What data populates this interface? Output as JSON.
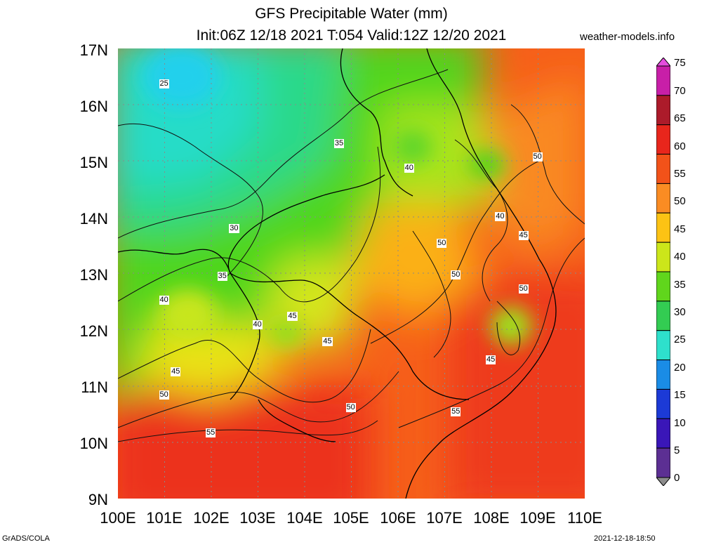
{
  "title": {
    "line1": "GFS Precipitable Water (mm)",
    "line2": "Init:06Z 12/18 2021 T:054 Valid:12Z 12/20 2021"
  },
  "site": "weather-models.info",
  "axes": {
    "lat_labels": [
      "17N",
      "16N",
      "15N",
      "14N",
      "13N",
      "12N",
      "11N",
      "10N",
      "9N"
    ],
    "lon_labels": [
      "100E",
      "101E",
      "102E",
      "103E",
      "104E",
      "105E",
      "106E",
      "107E",
      "108E",
      "109E",
      "110E"
    ],
    "lat_range": [
      9,
      17
    ],
    "lon_range": [
      100,
      110
    ]
  },
  "colorbar": {
    "labels": [
      "75",
      "70",
      "65",
      "60",
      "55",
      "50",
      "45",
      "40",
      "35",
      "30",
      "25",
      "20",
      "15",
      "10",
      "5",
      "0"
    ],
    "colors": [
      "#e54dde",
      "#c81fa8",
      "#ac1b2a",
      "#e8261c",
      "#f25219",
      "#fa8c23",
      "#fcc314",
      "#cce61a",
      "#60d61c",
      "#33cc52",
      "#2ee0cc",
      "#1a8ce6",
      "#1c3ad6",
      "#3a16b8",
      "#5c2f93",
      "#8c8c8c"
    ]
  },
  "contour_labels": [
    {
      "text": "25",
      "lon": 101.0,
      "lat": 16.36
    },
    {
      "text": "35",
      "lon": 104.75,
      "lat": 15.3
    },
    {
      "text": "40",
      "lon": 106.25,
      "lat": 14.87
    },
    {
      "text": "50",
      "lon": 109.0,
      "lat": 15.06
    },
    {
      "text": "30",
      "lon": 102.5,
      "lat": 13.79
    },
    {
      "text": "40",
      "lon": 108.2,
      "lat": 14.0
    },
    {
      "text": "45",
      "lon": 108.7,
      "lat": 13.67
    },
    {
      "text": "50",
      "lon": 106.95,
      "lat": 13.53
    },
    {
      "text": "35",
      "lon": 102.25,
      "lat": 12.95
    },
    {
      "text": "50",
      "lon": 107.25,
      "lat": 12.97
    },
    {
      "text": "50",
      "lon": 108.7,
      "lat": 12.72
    },
    {
      "text": "40",
      "lon": 101.0,
      "lat": 12.52
    },
    {
      "text": "45",
      "lon": 103.75,
      "lat": 12.23
    },
    {
      "text": "40",
      "lon": 103.0,
      "lat": 12.08
    },
    {
      "text": "45",
      "lon": 104.5,
      "lat": 11.78
    },
    {
      "text": "45",
      "lon": 108.0,
      "lat": 11.46
    },
    {
      "text": "45",
      "lon": 101.25,
      "lat": 11.25
    },
    {
      "text": "50",
      "lon": 101.0,
      "lat": 10.84
    },
    {
      "text": "50",
      "lon": 105.0,
      "lat": 10.61
    },
    {
      "text": "55",
      "lon": 107.25,
      "lat": 10.54
    },
    {
      "text": "55",
      "lon": 102.0,
      "lat": 10.16
    }
  ],
  "footer": {
    "left": "GrADS/COLA",
    "right": "2021-12-18-18:50"
  }
}
